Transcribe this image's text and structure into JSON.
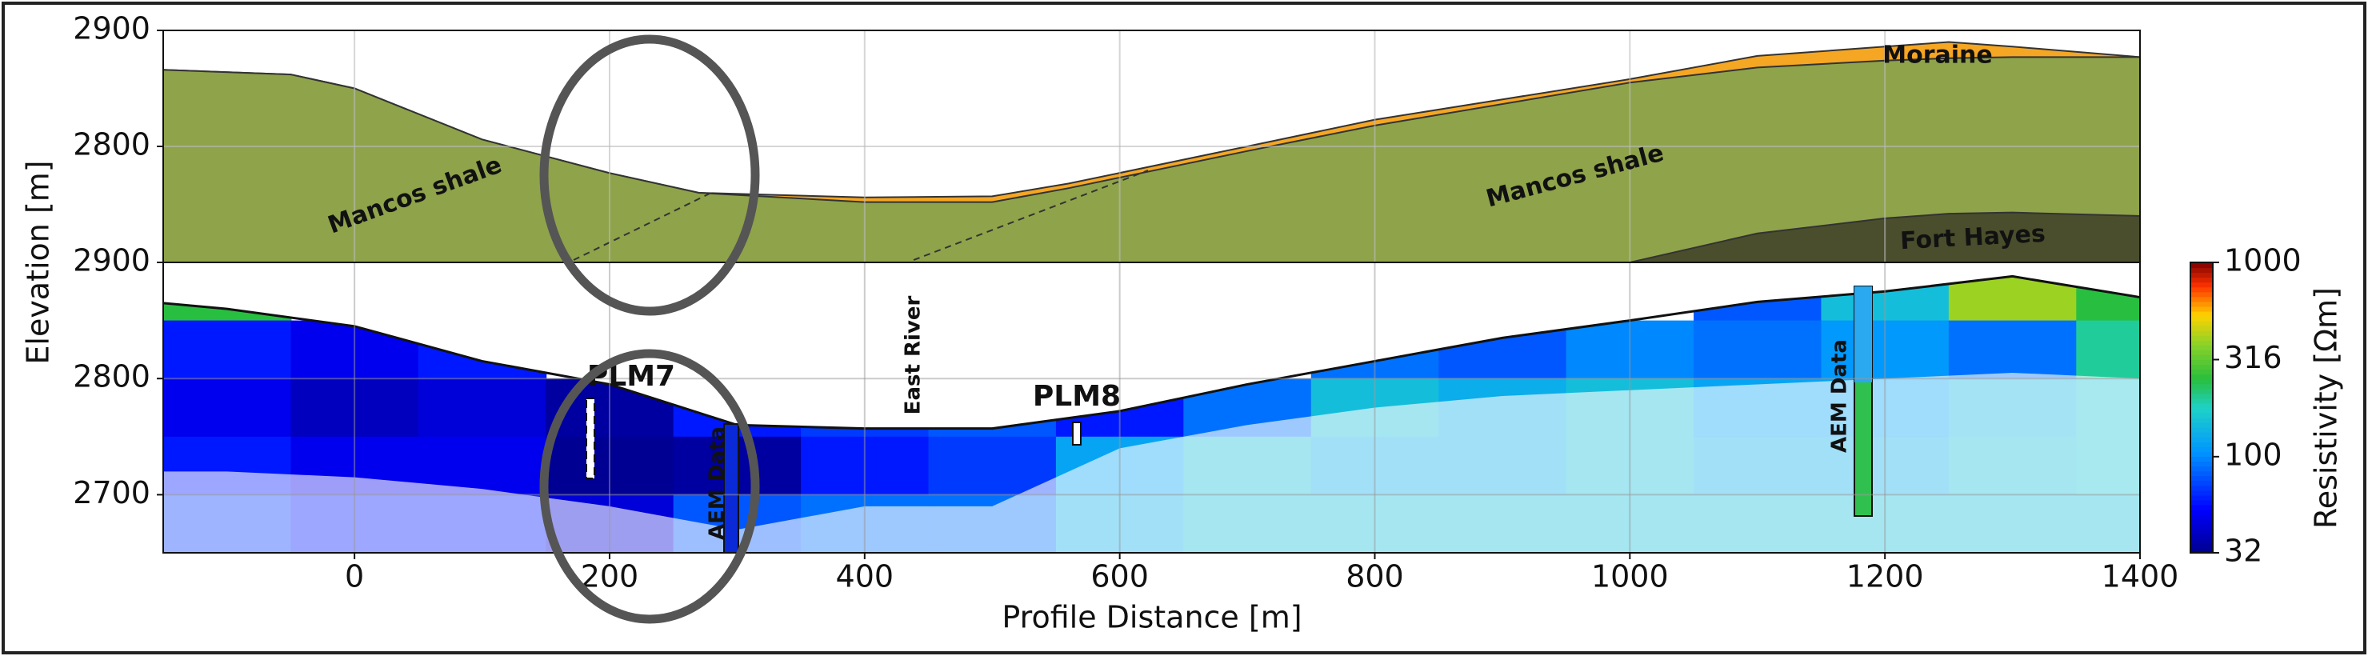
{
  "chart_data": [
    {
      "type": "geology",
      "ylabel": "Elevation [m]",
      "x": [
        -150,
        -50,
        0,
        100,
        200,
        270,
        400,
        500,
        560,
        700,
        800,
        1000,
        1100,
        1200,
        1250,
        1300,
        1400
      ],
      "series": [
        {
          "name": "Moraine",
          "color": "#f5a623",
          "values": [
            2866,
            2862,
            2850,
            2806,
            2777,
            2760,
            2756,
            2757,
            2768,
            2800,
            2823,
            2858,
            2878,
            2886,
            2890,
            2886,
            2877
          ]
        },
        {
          "name": "Mancos shale",
          "color": "#8fa34a",
          "values": [
            2866,
            2862,
            2850,
            2806,
            2777,
            2760,
            2752,
            2752,
            2764,
            2796,
            2818,
            2855,
            2868,
            2874,
            2876,
            2877,
            2877
          ]
        },
        {
          "name": "Fort Hayes",
          "color": "#4a4e2c",
          "values": [
            null,
            null,
            null,
            null,
            null,
            null,
            null,
            null,
            null,
            null,
            null,
            2700,
            2725,
            2738,
            2742,
            2743,
            2740
          ]
        }
      ],
      "annotations": [
        "Mancos shale",
        "Mancos shale",
        "Moraine",
        "Fort Hayes"
      ],
      "xlim": [
        -150,
        1400
      ],
      "ylim": [
        2700,
        2900
      ],
      "yticks": [
        2800,
        2900
      ],
      "grid": true
    },
    {
      "type": "heatmap",
      "xlabel": "Profile Distance [m]",
      "colorbar_label": "Resistivity [Ωm]",
      "x": [
        -150,
        -100,
        0,
        100,
        200,
        300,
        400,
        500,
        600,
        700,
        800,
        900,
        1000,
        1100,
        1200,
        1300,
        1400
      ],
      "topography": [
        2865,
        2860,
        2845,
        2815,
        2795,
        2760,
        2757,
        2757,
        2772,
        2795,
        2815,
        2835,
        2850,
        2866,
        2875,
        2888,
        2870
      ],
      "doi": [
        2720,
        2720,
        2715,
        2705,
        2690,
        2670,
        2690,
        2690,
        2740,
        2760,
        2775,
        2785,
        2790,
        2795,
        2800,
        2805,
        2800
      ],
      "cell_x": [
        -100,
        0,
        100,
        200,
        300,
        400,
        500,
        600,
        700,
        800,
        900,
        1000,
        1100,
        1200,
        1300,
        1400
      ],
      "cell_y": [
        2875,
        2825,
        2775,
        2725,
        2675
      ],
      "values": [
        [
          250,
          null,
          null,
          null,
          null,
          null,
          null,
          null,
          null,
          null,
          null,
          null,
          80,
          150,
          400,
          250
        ],
        [
          60,
          50,
          60,
          null,
          null,
          null,
          null,
          null,
          null,
          90,
          80,
          100,
          90,
          110,
          90,
          200
        ],
        [
          50,
          40,
          45,
          35,
          60,
          70,
          80,
          60,
          90,
          150,
          130,
          150,
          120,
          120,
          140,
          160
        ],
        [
          60,
          50,
          50,
          33,
          35,
          60,
          70,
          120,
          150,
          130,
          130,
          150,
          130,
          130,
          150,
          160
        ],
        [
          70,
          60,
          60,
          45,
          80,
          90,
          90,
          130,
          150,
          150,
          150,
          150,
          150,
          150,
          150,
          150
        ]
      ],
      "annotations": [
        "PLM7",
        "PLM8",
        "East River",
        "AEM Data",
        "AEM Data"
      ],
      "log_color": true,
      "clim": [
        32,
        1000
      ],
      "cticks": [
        32,
        100,
        316,
        1000
      ],
      "xlim": [
        -150,
        1400
      ],
      "ylim": [
        2650,
        2900
      ],
      "xticks": [
        0,
        200,
        400,
        600,
        800,
        1000,
        1200,
        1400
      ],
      "yticks": [
        2700,
        2800,
        2900
      ],
      "grid": true
    }
  ]
}
